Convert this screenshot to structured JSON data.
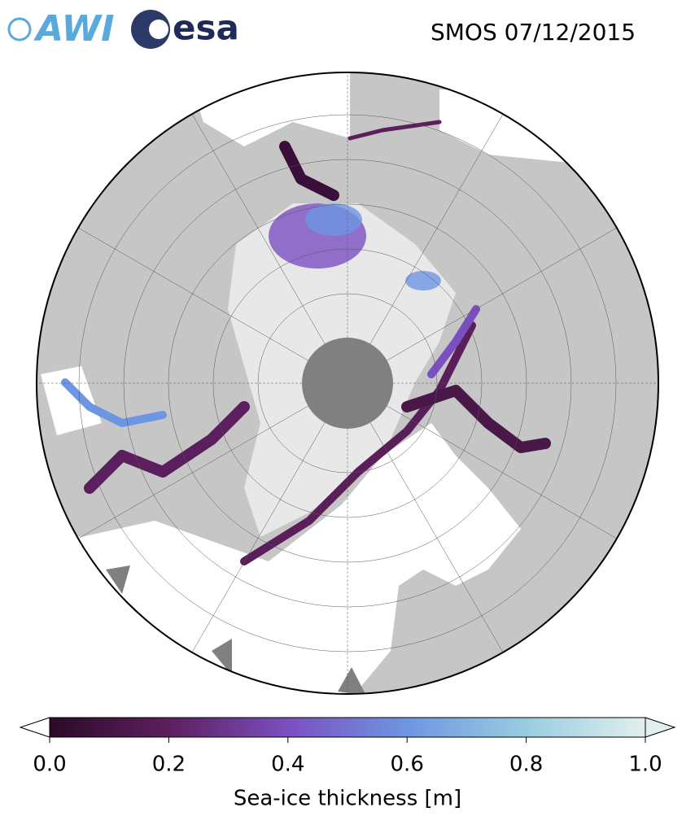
{
  "logos": [
    "AWI",
    "esa"
  ],
  "title": "SMOS 07/12/2015",
  "colorbar": {
    "type": "colorbar",
    "label": "Sea-ice thickness [m]",
    "range": [
      0,
      1
    ],
    "extend": "both",
    "colors": [
      "#2b0b28",
      "#5c1f5e",
      "#7b4fc0",
      "#6d96e2",
      "#98cde0",
      "#e2efee"
    ],
    "ticks": [
      {
        "value": 0,
        "label": "0.0"
      },
      {
        "value": 0.2,
        "label": "0.2"
      },
      {
        "value": 0.4,
        "label": "0.4"
      },
      {
        "value": 0.6,
        "label": "0.6"
      },
      {
        "value": 0.8,
        "label": "0.8"
      },
      {
        "value": 1,
        "label": "1.0"
      }
    ]
  }
}
